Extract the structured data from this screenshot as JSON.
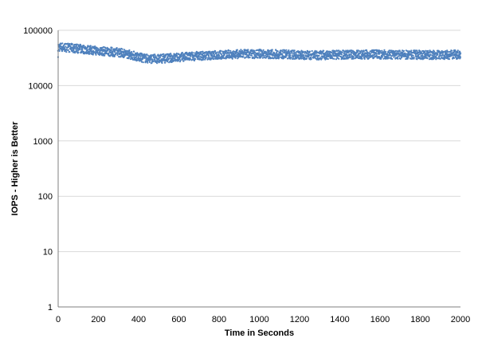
{
  "chart_data": {
    "type": "scatter",
    "title": "",
    "xlabel": "Time in Seconds",
    "ylabel": "IOPS - Higher is Better",
    "xlim": [
      0,
      2000
    ],
    "ylim": [
      1,
      100000
    ],
    "y_scale": "log",
    "grid": {
      "x": false,
      "y": true
    },
    "legend": "none",
    "x_ticks": [
      "0",
      "200",
      "400",
      "600",
      "800",
      "1000",
      "1200",
      "1400",
      "1600",
      "1800",
      "2000"
    ],
    "y_ticks": [
      "1",
      "10",
      "100",
      "1000",
      "10000",
      "100000"
    ],
    "series": [
      {
        "color": "#4f81bd",
        "band_spread": 0.08,
        "points": [
          {
            "x": 0,
            "y": 50000
          },
          {
            "x": 25,
            "y": 49500
          },
          {
            "x": 50,
            "y": 48500
          },
          {
            "x": 100,
            "y": 46500
          },
          {
            "x": 150,
            "y": 44500
          },
          {
            "x": 200,
            "y": 42500
          },
          {
            "x": 250,
            "y": 41000
          },
          {
            "x": 300,
            "y": 40000
          },
          {
            "x": 350,
            "y": 37000
          },
          {
            "x": 380,
            "y": 34500
          },
          {
            "x": 400,
            "y": 32500
          },
          {
            "x": 450,
            "y": 30500
          },
          {
            "x": 500,
            "y": 30500
          },
          {
            "x": 550,
            "y": 31500
          },
          {
            "x": 600,
            "y": 32500
          },
          {
            "x": 650,
            "y": 33500
          },
          {
            "x": 700,
            "y": 34500
          },
          {
            "x": 800,
            "y": 36000
          },
          {
            "x": 900,
            "y": 37000
          },
          {
            "x": 1000,
            "y": 37500
          },
          {
            "x": 1100,
            "y": 37000
          },
          {
            "x": 1200,
            "y": 36000
          },
          {
            "x": 1300,
            "y": 35500
          },
          {
            "x": 1400,
            "y": 36000
          },
          {
            "x": 1500,
            "y": 36500
          },
          {
            "x": 1600,
            "y": 36500
          },
          {
            "x": 1700,
            "y": 36000
          },
          {
            "x": 1800,
            "y": 36000
          },
          {
            "x": 1900,
            "y": 36000
          },
          {
            "x": 2000,
            "y": 36500
          }
        ]
      }
    ]
  }
}
